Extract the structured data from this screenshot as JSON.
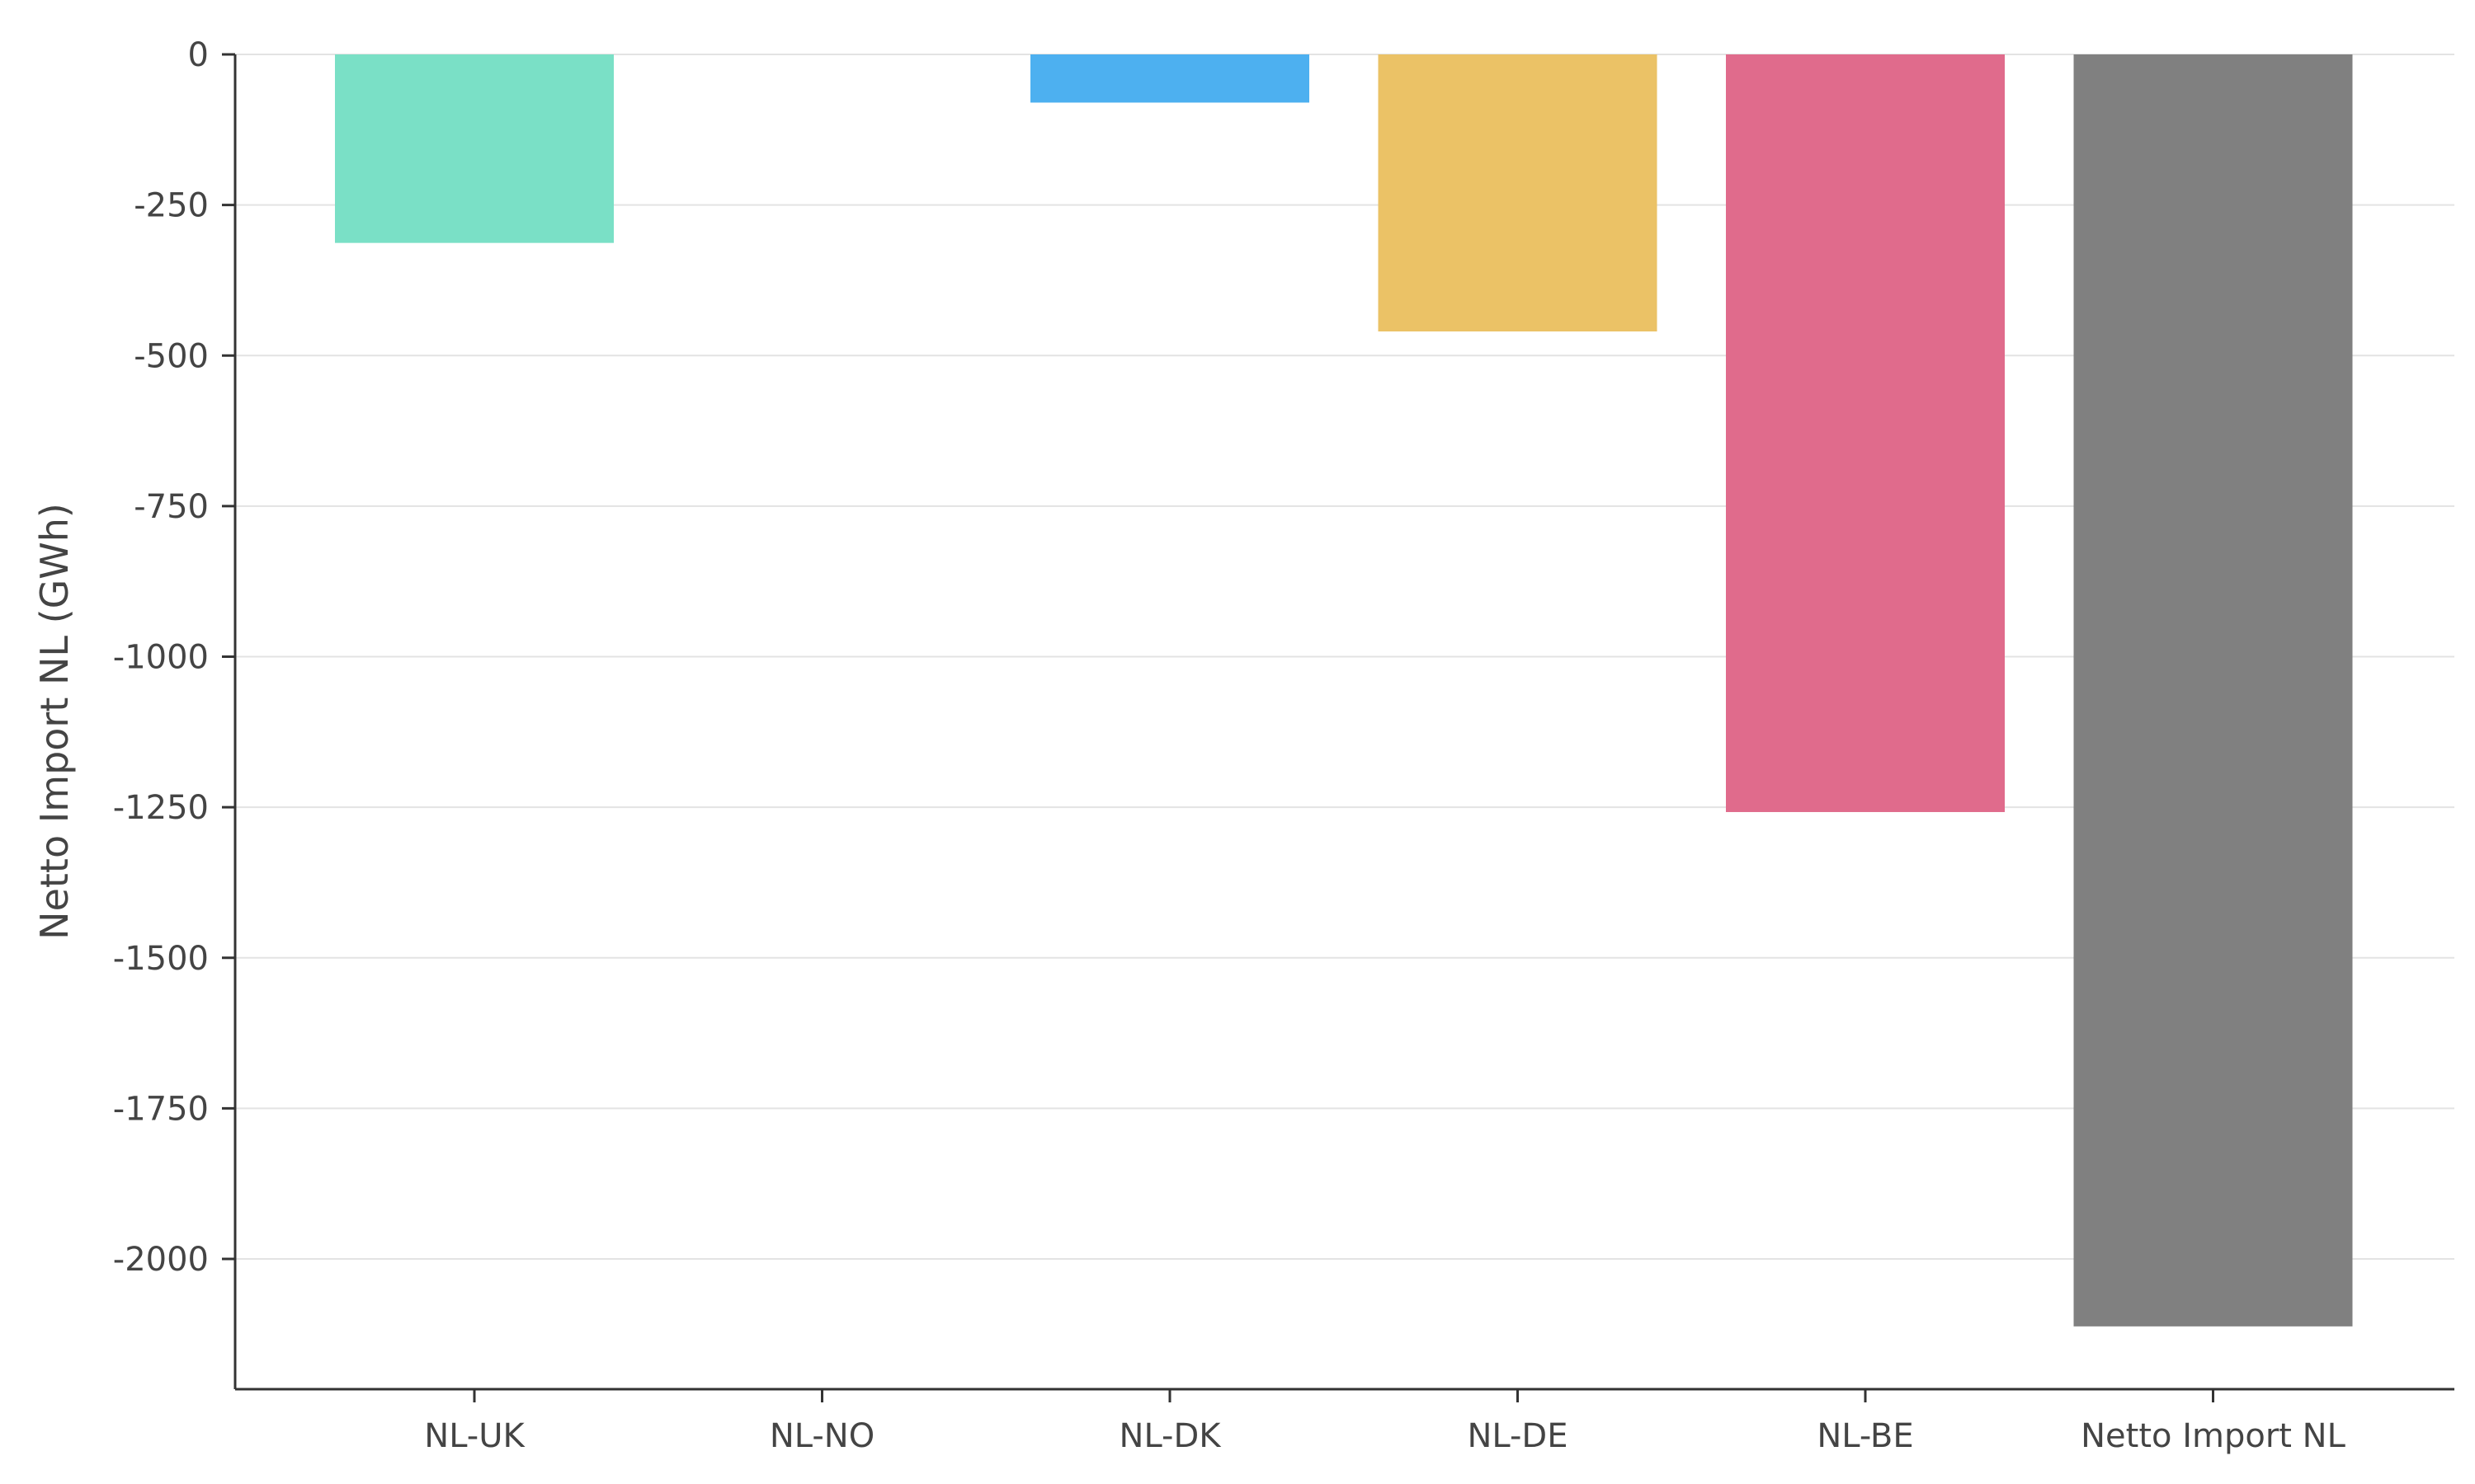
{
  "chart_data": {
    "type": "bar",
    "ylabel": "Netto Import NL (GWh)",
    "xlabel": "",
    "categories": [
      "NL-UK",
      "NL-NO",
      "NL-DK",
      "NL-DE",
      "NL-BE",
      "Netto Import NL"
    ],
    "values": [
      -313,
      0,
      -80,
      -460,
      -1258,
      -2112
    ],
    "colors": [
      "#7ae0c6",
      "#7ae0c6",
      "#4db0f0",
      "#ebc266",
      "#e06b8c",
      "#808080"
    ],
    "ylim": [
      -2220,
      0
    ],
    "yticks": [
      0,
      -250,
      -500,
      -750,
      -1000,
      -1250,
      -1500,
      -1750,
      -2000
    ],
    "ytick_labels": [
      "0",
      "-250",
      "-500",
      "-750",
      "-1000",
      "-1250",
      "-1500",
      "-1750",
      "-2000"
    ],
    "grid": true,
    "grid_color": "#e3e3e3",
    "axis_color": "#333333",
    "legend": "none"
  }
}
